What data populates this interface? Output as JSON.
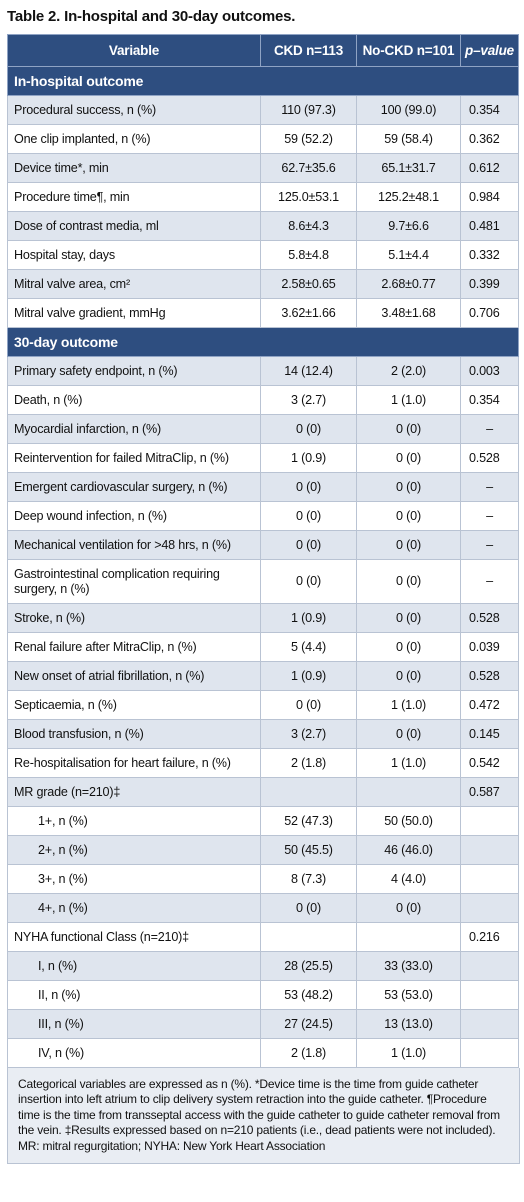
{
  "caption": "Table 2. In-hospital and 30-day outcomes.",
  "headers": [
    "Variable",
    "CKD n=113",
    "No-CKD n=101",
    "p–value"
  ],
  "sections": [
    {
      "title": "In-hospital outcome",
      "rows": [
        {
          "label": "Procedural success, n (%)",
          "ckd": "110 (97.3)",
          "nockd": "100 (99.0)",
          "p": "0.354"
        },
        {
          "label": "One clip implanted, n (%)",
          "ckd": "59 (52.2)",
          "nockd": "59 (58.4)",
          "p": "0.362"
        },
        {
          "label": "Device time*, min",
          "ckd": "62.7±35.6",
          "nockd": "65.1±31.7",
          "p": "0.612"
        },
        {
          "label": "Procedure time¶, min",
          "ckd": "125.0±53.1",
          "nockd": "125.2±48.1",
          "p": "0.984"
        },
        {
          "label": "Dose of contrast media, ml",
          "ckd": "8.6±4.3",
          "nockd": "9.7±6.6",
          "p": "0.481"
        },
        {
          "label": "Hospital stay, days",
          "ckd": "5.8±4.8",
          "nockd": "5.1±4.4",
          "p": "0.332"
        },
        {
          "label": "Mitral valve area, cm²",
          "ckd": "2.58±0.65",
          "nockd": "2.68±0.77",
          "p": "0.399"
        },
        {
          "label": "Mitral valve gradient, mmHg",
          "ckd": "3.62±1.66",
          "nockd": "3.48±1.68",
          "p": "0.706"
        }
      ]
    },
    {
      "title": "30-day outcome",
      "rows": [
        {
          "label": "Primary safety endpoint, n (%)",
          "ckd": "14 (12.4)",
          "nockd": "2 (2.0)",
          "p": "0.003"
        },
        {
          "label": "Death, n (%)",
          "ckd": "3 (2.7)",
          "nockd": "1 (1.0)",
          "p": "0.354"
        },
        {
          "label": "Myocardial infarction, n (%)",
          "ckd": "0 (0)",
          "nockd": "0 (0)",
          "p": "–"
        },
        {
          "label": "Reintervention for failed MitraClip, n (%)",
          "ckd": "1 (0.9)",
          "nockd": "0 (0)",
          "p": "0.528"
        },
        {
          "label": "Emergent cardiovascular surgery, n (%)",
          "ckd": "0 (0)",
          "nockd": "0 (0)",
          "p": "–"
        },
        {
          "label": "Deep wound infection, n (%)",
          "ckd": "0 (0)",
          "nockd": "0 (0)",
          "p": "–"
        },
        {
          "label": "Mechanical ventilation for >48 hrs, n (%)",
          "ckd": "0 (0)",
          "nockd": "0 (0)",
          "p": "–"
        },
        {
          "label": "Gastrointestinal complication requiring surgery, n (%)",
          "ckd": "0 (0)",
          "nockd": "0 (0)",
          "p": "–",
          "tall": true
        },
        {
          "label": "Stroke, n (%)",
          "ckd": "1 (0.9)",
          "nockd": "0 (0)",
          "p": "0.528"
        },
        {
          "label": "Renal failure after MitraClip, n (%)",
          "ckd": "5 (4.4)",
          "nockd": "0 (0)",
          "p": "0.039"
        },
        {
          "label": "New onset of atrial fibrillation, n (%)",
          "ckd": "1 (0.9)",
          "nockd": "0 (0)",
          "p": "0.528"
        },
        {
          "label": "Septicaemia, n (%)",
          "ckd": "0 (0)",
          "nockd": "1 (1.0)",
          "p": "0.472"
        },
        {
          "label": "Blood transfusion, n (%)",
          "ckd": "3 (2.7)",
          "nockd": "0 (0)",
          "p": "0.145"
        },
        {
          "label": "Re-hospitalisation for heart failure, n (%)",
          "ckd": "2 (1.8)",
          "nockd": "1 (1.0)",
          "p": "0.542"
        },
        {
          "label": "MR grade (n=210)‡",
          "ckd": "",
          "nockd": "",
          "p": "0.587"
        },
        {
          "label": "1+, n (%)",
          "ckd": "52 (47.3)",
          "nockd": "50 (50.0)",
          "p": "",
          "indent": true
        },
        {
          "label": "2+, n (%)",
          "ckd": "50 (45.5)",
          "nockd": "46 (46.0)",
          "p": "",
          "indent": true
        },
        {
          "label": "3+, n (%)",
          "ckd": "8 (7.3)",
          "nockd": "4 (4.0)",
          "p": "",
          "indent": true
        },
        {
          "label": "4+, n (%)",
          "ckd": "0 (0)",
          "nockd": "0 (0)",
          "p": "",
          "indent": true
        },
        {
          "label": "NYHA functional Class (n=210)‡",
          "ckd": "",
          "nockd": "",
          "p": "0.216"
        },
        {
          "label": "I, n (%)",
          "ckd": "28 (25.5)",
          "nockd": "33 (33.0)",
          "p": "",
          "indent": true
        },
        {
          "label": "II, n (%)",
          "ckd": "53 (48.2)",
          "nockd": "53 (53.0)",
          "p": "",
          "indent": true
        },
        {
          "label": "III, n (%)",
          "ckd": "27 (24.5)",
          "nockd": "13 (13.0)",
          "p": "",
          "indent": true
        },
        {
          "label": "IV, n (%)",
          "ckd": "2 (1.8)",
          "nockd": "1 (1.0)",
          "p": "",
          "indent": true
        }
      ]
    }
  ],
  "footnote": "Categorical variables are expressed as n (%). *Device time is the time from guide catheter insertion into left atrium to clip delivery system retraction into the guide catheter. ¶Procedure time is the time from transseptal access with the guide catheter to guide catheter removal from the vein. ‡Results expressed based on n=210 patients (i.e., dead patients were not included). MR: mitral regurgitation; NYHA: New York Heart Association"
}
